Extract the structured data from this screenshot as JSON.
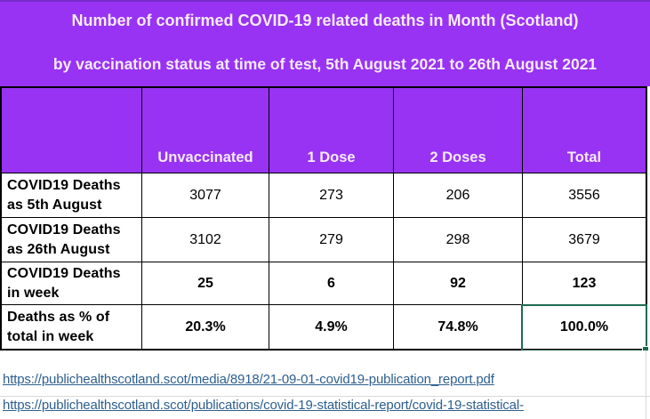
{
  "banner": {
    "title_line1": "Number of confirmed COVID-19 related deaths in Month (Scotland)",
    "title_line2": "by vaccination status at time of test, 5th August 2021 to 26th August 2021"
  },
  "table": {
    "corner_label": "",
    "column_headers": [
      "Unvaccinated",
      "1 Dose",
      "2 Doses",
      "Total"
    ],
    "rows": [
      {
        "label": "COVID19 Deaths\nas 5th August",
        "values": [
          "3077",
          "273",
          "206",
          "3556"
        ]
      },
      {
        "label": "COVID19 Deaths\nas 26th August",
        "values": [
          "3102",
          "279",
          "298",
          "3679"
        ]
      },
      {
        "label": "COVID19 Deaths\nin week",
        "values": [
          "25",
          "6",
          "92",
          "123"
        ]
      },
      {
        "label": "Deaths as % of\ntotal in week",
        "values": [
          "20.3%",
          "4.9%",
          "74.8%",
          "100.0%"
        ]
      }
    ],
    "selected_cell_value": "100.0%"
  },
  "links": {
    "report_pdf": "https://publichealthscotland.scot/media/8918/21-09-01-covid19-publication_report.pdf",
    "statistical_report": "https://publichealthscotland.scot/publications/covid-19-statistical-report/covid-19-statistical-"
  },
  "chart_data": {
    "type": "table",
    "title": "Number of confirmed COVID-19 related deaths in Month (Scotland) by vaccination status at time of test, 5th August 2021 to 26th August 2021",
    "columns": [
      "",
      "Unvaccinated",
      "1 Dose",
      "2 Doses",
      "Total"
    ],
    "rows": [
      [
        "COVID19 Deaths as 5th August",
        "3077",
        "273",
        "206",
        "3556"
      ],
      [
        "COVID19 Deaths as 26th August",
        "3102",
        "279",
        "298",
        "3679"
      ],
      [
        "COVID19 Deaths in week",
        "25",
        "6",
        "92",
        "123"
      ],
      [
        "Deaths as % of total in week",
        "20.3%",
        "4.9%",
        "74.8%",
        "100.0%"
      ]
    ]
  },
  "colors": {
    "banner_purple": "#9833F3",
    "banner_top_edge": "#7A28C9",
    "banner_text": "#F6EAFB",
    "selection_green": "#1E6B52",
    "link_blue": "#2D5F8E",
    "gridline_gray": "#D9D9D9"
  }
}
